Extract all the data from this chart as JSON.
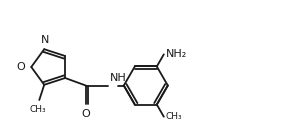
{
  "line_color": "#1a1a1a",
  "bg_color": "#ffffff",
  "lw": 1.3,
  "fs": 7.0,
  "figsize": [
    3.02,
    1.4
  ],
  "dpi": 100,
  "xlim": [
    0,
    302
  ],
  "ylim": [
    0,
    140
  ]
}
